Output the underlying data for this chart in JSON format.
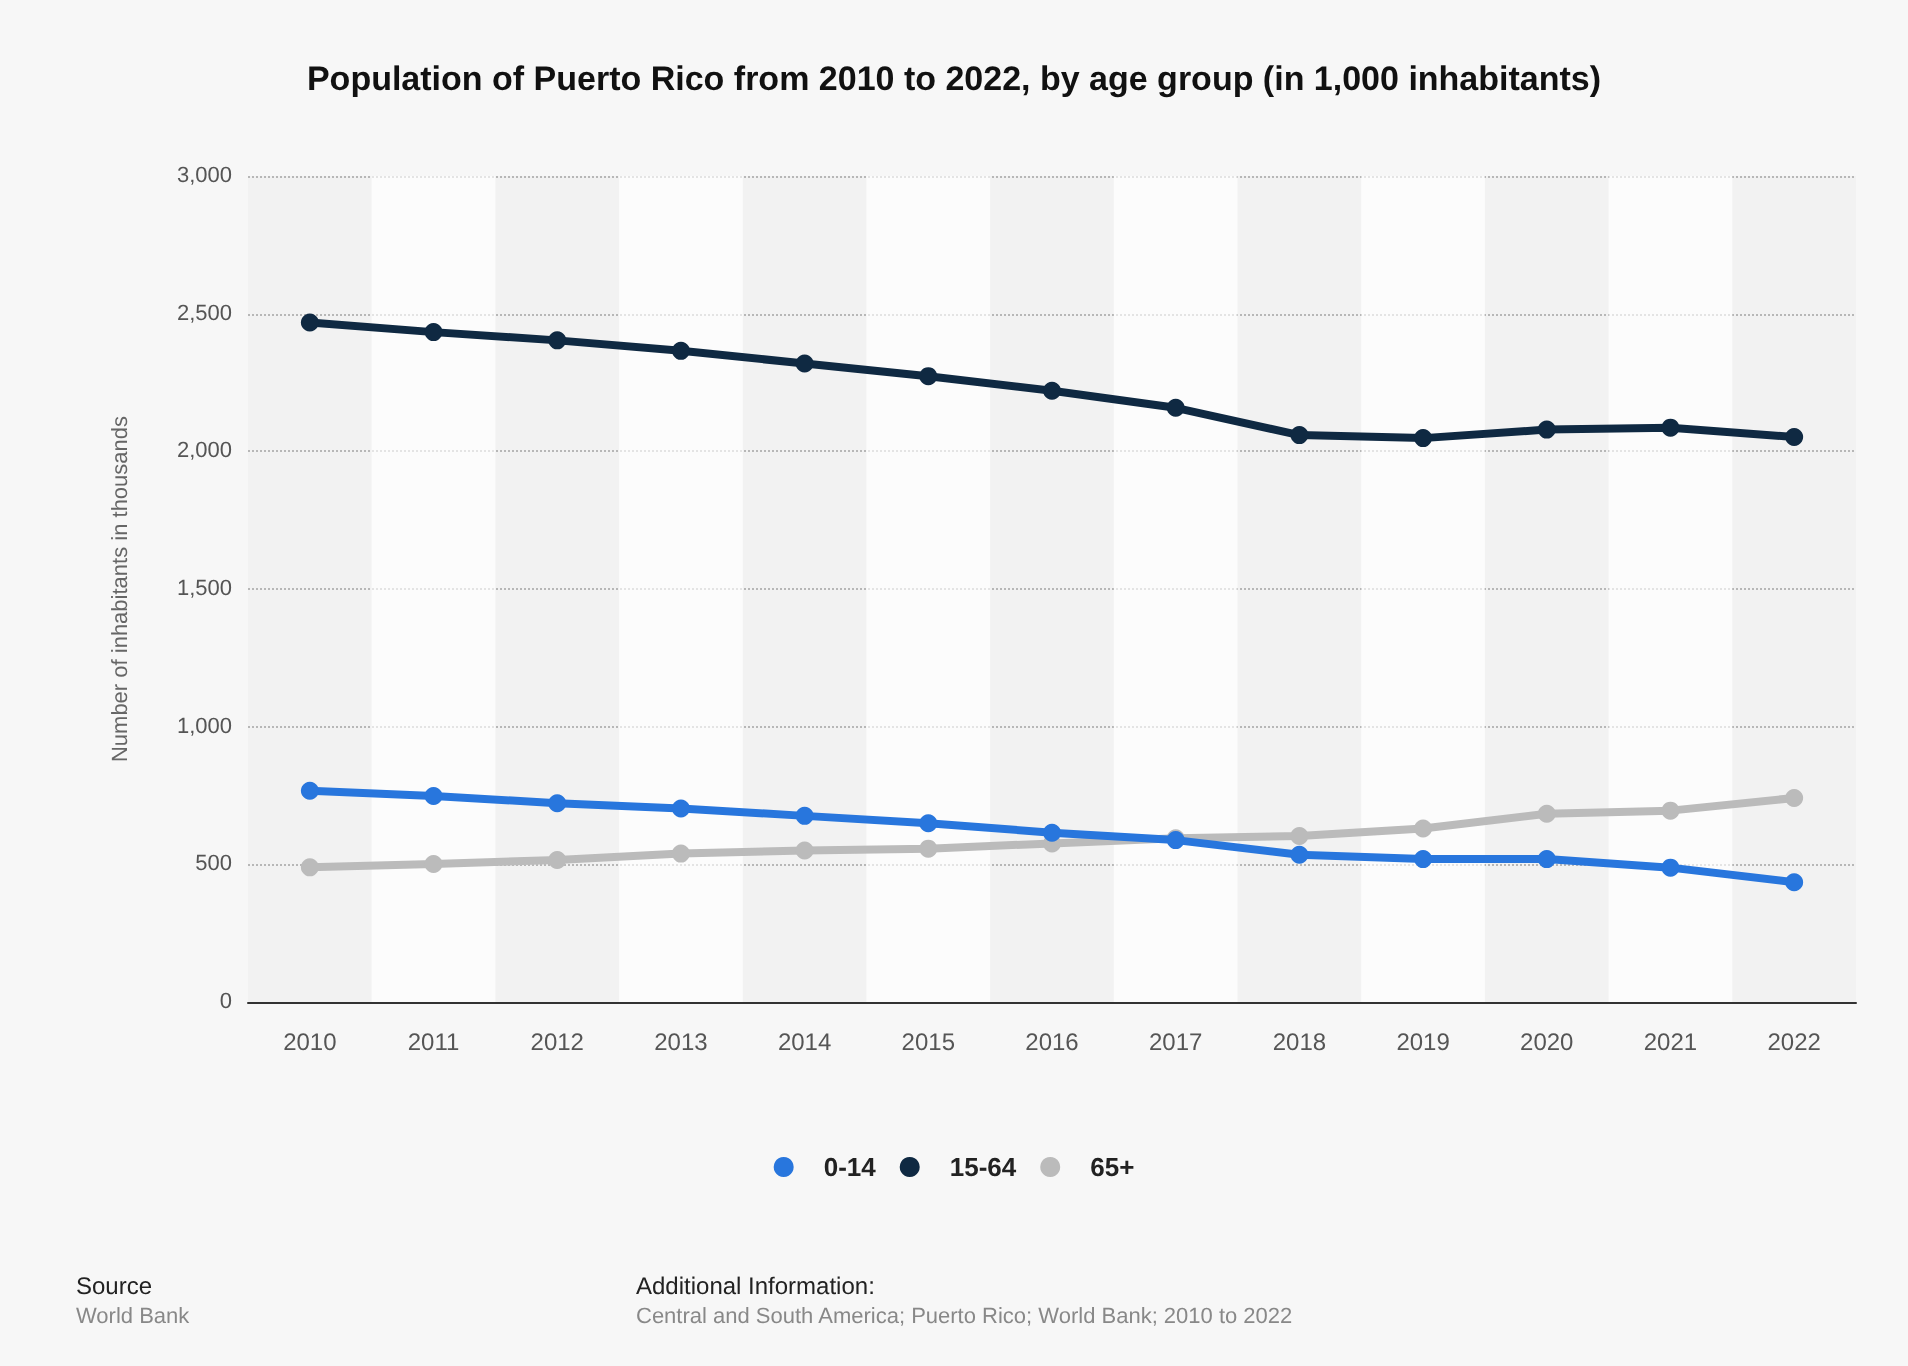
{
  "chart_data": {
    "type": "line",
    "title": "Population of Puerto Rico from 2010 to 2022, by age group (in 1,000 inhabitants)",
    "ylabel": "Number of inhabitants in thousands",
    "categories": [
      "2010",
      "2011",
      "2012",
      "2013",
      "2014",
      "2015",
      "2016",
      "2017",
      "2018",
      "2019",
      "2020",
      "2021",
      "2022"
    ],
    "series": [
      {
        "name": "0-14",
        "color": "#2876dd",
        "values": [
          767,
          748,
          722,
          703,
          676,
          649,
          615,
          588,
          535,
          519,
          519,
          488,
          435
        ]
      },
      {
        "name": "15-64",
        "color": "#0f2942",
        "values": [
          2468,
          2433,
          2403,
          2365,
          2319,
          2273,
          2220,
          2158,
          2059,
          2048,
          2079,
          2086,
          2052
        ]
      },
      {
        "name": "65+",
        "color": "#bbbbbb",
        "values": [
          489,
          501,
          516,
          539,
          550,
          557,
          576,
          595,
          603,
          630,
          684,
          695,
          741
        ]
      }
    ],
    "ylim": [
      0,
      3000
    ],
    "yticks": [
      0,
      500,
      {
        "value": 1000,
        "label": "1,000"
      },
      {
        "value": 1500,
        "label": "1,500"
      },
      {
        "value": 2000,
        "label": "2,000"
      },
      {
        "value": 2500,
        "label": "2,500"
      },
      {
        "value": 3000,
        "label": "3,000"
      }
    ],
    "grid": "y",
    "legend": "bottom",
    "marker": "circle",
    "line_style": "solid",
    "annotations": [
      "Source",
      "World Bank",
      "Additional Information:",
      "Central and South America; Puerto Rico; World Bank; 2010 to 2022"
    ]
  }
}
